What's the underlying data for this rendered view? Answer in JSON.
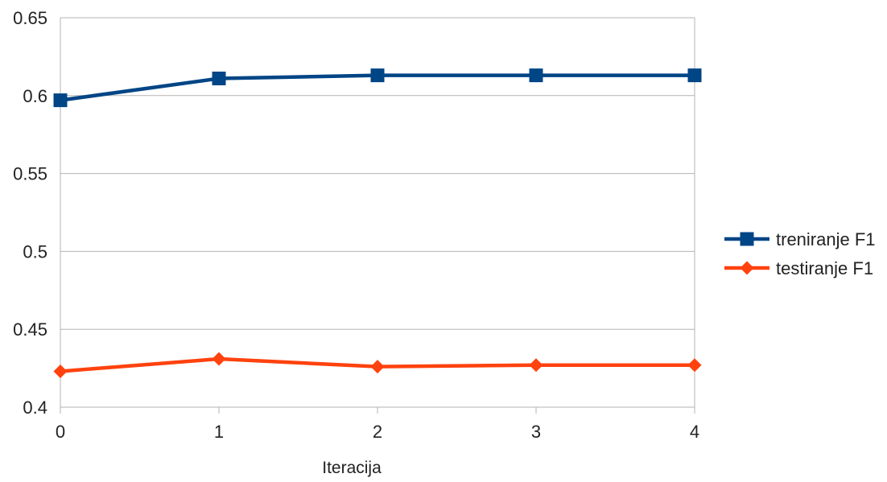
{
  "chart_data": {
    "type": "line",
    "title": "",
    "xlabel": "Iteracija",
    "ylabel": "",
    "x": [
      0,
      1,
      2,
      3,
      4
    ],
    "xlim": [
      0,
      4
    ],
    "ylim": [
      0.4,
      0.65
    ],
    "yticks": [
      0.4,
      0.45,
      0.5,
      0.55,
      0.6,
      0.65
    ],
    "ytick_labels": [
      "0.4",
      "0.45",
      "0.5",
      "0.55",
      "0.6",
      "0.65"
    ],
    "xtick_labels": [
      "0",
      "1",
      "2",
      "3",
      "4"
    ],
    "grid": "horizontal",
    "legend_position": "right",
    "series": [
      {
        "name": "treniranje F1",
        "values": [
          0.597,
          0.611,
          0.613,
          0.613,
          0.613
        ],
        "color": "#004586",
        "marker": "square"
      },
      {
        "name": "testiranje F1",
        "values": [
          0.423,
          0.431,
          0.426,
          0.427,
          0.427
        ],
        "color": "#ff420e",
        "marker": "diamond"
      }
    ]
  }
}
